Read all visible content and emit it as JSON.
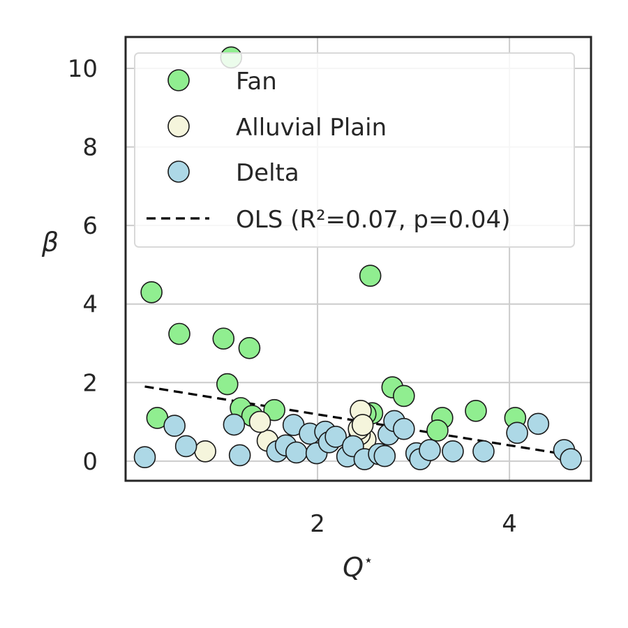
{
  "colors": {
    "fan": "#90ee90",
    "alluvial": "#f5f5dc",
    "delta": "#add8e6",
    "ols": "#000000"
  },
  "chart_data": {
    "type": "scatter",
    "xlabel": "Q⋆",
    "ylabel": "β",
    "xlim": [
      0.0,
      4.85
    ],
    "ylim": [
      -0.5,
      10.8
    ],
    "xticks": [
      2,
      4
    ],
    "yticks": [
      0,
      2,
      4,
      6,
      8,
      10
    ],
    "xtick_labels": [
      "2",
      "4"
    ],
    "ytick_labels": [
      "0",
      "2",
      "4",
      "6",
      "8",
      "10"
    ],
    "grid": true,
    "legend_position": "top-right",
    "series": [
      {
        "name": "Fan",
        "color": "#90ee90",
        "points": [
          [
            1.1,
            10.28
          ],
          [
            0.27,
            4.3
          ],
          [
            0.56,
            3.24
          ],
          [
            1.02,
            3.12
          ],
          [
            1.29,
            2.88
          ],
          [
            1.06,
            1.96
          ],
          [
            0.33,
            1.1
          ],
          [
            1.2,
            1.35
          ],
          [
            1.32,
            1.15
          ],
          [
            1.55,
            1.3
          ],
          [
            2.55,
            4.72
          ],
          [
            2.78,
            1.88
          ],
          [
            2.9,
            1.66
          ],
          [
            2.57,
            1.22
          ],
          [
            3.3,
            1.1
          ],
          [
            3.25,
            0.78
          ],
          [
            3.65,
            1.28
          ],
          [
            4.06,
            1.1
          ],
          [
            2.5,
            1.2
          ]
        ]
      },
      {
        "name": "Alluvial Plain",
        "color": "#f5f5dc",
        "points": [
          [
            0.83,
            0.25
          ],
          [
            1.48,
            0.52
          ],
          [
            1.4,
            1.0
          ],
          [
            2.45,
            1.28
          ],
          [
            2.5,
            0.55
          ],
          [
            2.44,
            0.68
          ],
          [
            2.43,
            0.82
          ],
          [
            2.47,
            0.92
          ]
        ]
      },
      {
        "name": "Delta",
        "color": "#add8e6",
        "points": [
          [
            0.2,
            0.1
          ],
          [
            0.51,
            0.9
          ],
          [
            0.63,
            0.38
          ],
          [
            1.13,
            0.93
          ],
          [
            1.19,
            0.15
          ],
          [
            1.58,
            0.25
          ],
          [
            1.67,
            0.4
          ],
          [
            1.75,
            0.92
          ],
          [
            1.78,
            0.22
          ],
          [
            1.92,
            0.7
          ],
          [
            1.99,
            0.2
          ],
          [
            2.08,
            0.75
          ],
          [
            2.12,
            0.48
          ],
          [
            2.19,
            0.62
          ],
          [
            2.31,
            0.12
          ],
          [
            2.37,
            0.38
          ],
          [
            2.49,
            0.05
          ],
          [
            2.64,
            0.18
          ],
          [
            2.7,
            0.13
          ],
          [
            2.74,
            0.68
          ],
          [
            2.8,
            1.02
          ],
          [
            2.9,
            0.82
          ],
          [
            3.03,
            0.2
          ],
          [
            3.07,
            0.05
          ],
          [
            3.17,
            0.28
          ],
          [
            3.41,
            0.25
          ],
          [
            3.73,
            0.25
          ],
          [
            4.08,
            0.72
          ],
          [
            4.3,
            0.95
          ],
          [
            4.57,
            0.28
          ],
          [
            4.64,
            0.05
          ]
        ]
      }
    ],
    "fit_line": {
      "name": "OLS (R²=0.07, p=0.04)",
      "x": [
        0.2,
        4.64
      ],
      "y": [
        1.9,
        0.15
      ]
    }
  }
}
